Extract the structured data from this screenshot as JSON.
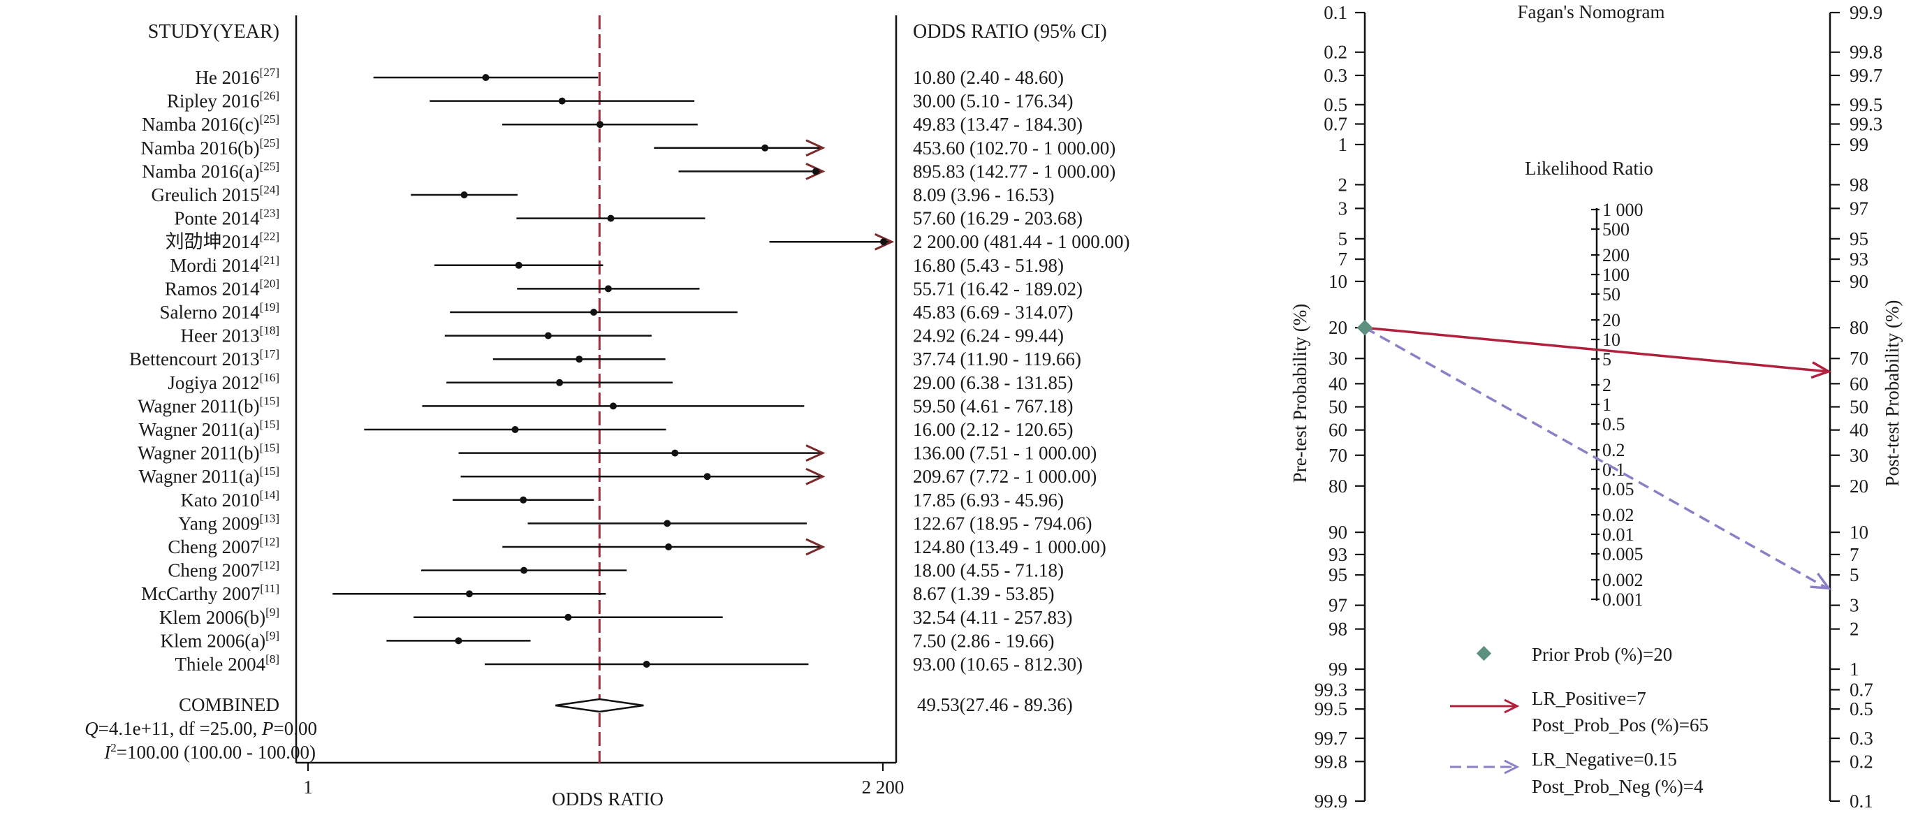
{
  "chart_data": [
    {
      "type": "forest",
      "header_left": "STUDY(YEAR)",
      "header_right": "ODDS RATIO (95% CI)",
      "xlabel": "ODDS RATIO",
      "x_scale": "log",
      "x_ticks": [
        "1",
        "2 200"
      ],
      "xlim": [
        1,
        2200
      ],
      "reference_line": 49.53,
      "arrow_color": "#7a2a2a",
      "reference_color": "#a32a3c",
      "studies": [
        {
          "name": "He 2016",
          "ref": "[27]",
          "or": 10.8,
          "lo": 2.4,
          "hi": 48.6,
          "label": "10.80 (2.40 - 48.60)"
        },
        {
          "name": "Ripley 2016",
          "ref": "[26]",
          "or": 30.0,
          "lo": 5.1,
          "hi": 176.34,
          "label": "30.00 (5.10 - 176.34)"
        },
        {
          "name": "Namba 2016(c)",
          "ref": "[25]",
          "or": 49.83,
          "lo": 13.47,
          "hi": 184.3,
          "label": "49.83 (13.47 - 184.30)"
        },
        {
          "name": "Namba 2016(b)",
          "ref": "[25]",
          "or": 453.6,
          "lo": 102.7,
          "hi": 1000,
          "label": "453.60 (102.70 - 1 000.00)"
        },
        {
          "name": "Namba 2016(a)",
          "ref": "[25]",
          "or": 895.83,
          "lo": 142.77,
          "hi": 1000,
          "label": "895.83 (142.77 - 1 000.00)"
        },
        {
          "name": "Greulich 2015",
          "ref": "[24]",
          "or": 8.09,
          "lo": 3.96,
          "hi": 16.53,
          "label": "8.09 (3.96 - 16.53)"
        },
        {
          "name": "Ponte 2014",
          "ref": "[23]",
          "or": 57.6,
          "lo": 16.29,
          "hi": 203.68,
          "label": "57.60 (16.29 - 203.68)"
        },
        {
          "name": "刘劭坤2014",
          "ref": "[22]",
          "or": 2200.0,
          "lo": 481.44,
          "hi": 1000,
          "label": "2 200.00 (481.44 - 1 000.00)"
        },
        {
          "name": "Mordi 2014",
          "ref": "[21]",
          "or": 16.8,
          "lo": 5.43,
          "hi": 51.98,
          "label": "16.80 (5.43 - 51.98)"
        },
        {
          "name": "Ramos 2014",
          "ref": "[20]",
          "or": 55.71,
          "lo": 16.42,
          "hi": 189.02,
          "label": "55.71 (16.42 - 189.02)"
        },
        {
          "name": "Salerno 2014",
          "ref": "[19]",
          "or": 45.83,
          "lo": 6.69,
          "hi": 314.07,
          "label": "45.83 (6.69 - 314.07)"
        },
        {
          "name": "Heer 2013",
          "ref": "[18]",
          "or": 24.92,
          "lo": 6.24,
          "hi": 99.44,
          "label": "24.92 (6.24 - 99.44)"
        },
        {
          "name": "Bettencourt 2013",
          "ref": "[17]",
          "or": 37.74,
          "lo": 11.9,
          "hi": 119.66,
          "label": "37.74 (11.90 - 119.66)"
        },
        {
          "name": "Jogiya 2012",
          "ref": "[16]",
          "or": 29.0,
          "lo": 6.38,
          "hi": 131.85,
          "label": "29.00 (6.38 - 131.85)"
        },
        {
          "name": "Wagner 2011(b)",
          "ref": "[15]",
          "or": 59.5,
          "lo": 4.61,
          "hi": 767.18,
          "label": "59.50 (4.61 - 767.18)"
        },
        {
          "name": "Wagner 2011(a)",
          "ref": "[15]",
          "or": 16.0,
          "lo": 2.12,
          "hi": 120.65,
          "label": "16.00 (2.12 - 120.65)"
        },
        {
          "name": "Wagner 2011(b)",
          "ref": "[15]",
          "or": 136.0,
          "lo": 7.51,
          "hi": 1000,
          "label": "136.00 (7.51 - 1 000.00)"
        },
        {
          "name": "Wagner 2011(a)",
          "ref": "[15]",
          "or": 209.67,
          "lo": 7.72,
          "hi": 1000,
          "label": "209.67 (7.72 - 1 000.00)"
        },
        {
          "name": "Kato 2010",
          "ref": "[14]",
          "or": 17.85,
          "lo": 6.93,
          "hi": 45.96,
          "label": "17.85 (6.93 - 45.96)"
        },
        {
          "name": "Yang 2009",
          "ref": "[13]",
          "or": 122.67,
          "lo": 18.95,
          "hi": 794.06,
          "label": "122.67 (18.95 - 794.06)"
        },
        {
          "name": "Cheng 2007",
          "ref": "[12]",
          "or": 124.8,
          "lo": 13.49,
          "hi": 1000,
          "label": "124.80 (13.49 - 1 000.00)"
        },
        {
          "name": "Cheng 2007",
          "ref": "[12]",
          "or": 18.0,
          "lo": 4.55,
          "hi": 71.18,
          "label": "18.00 (4.55 - 71.18)"
        },
        {
          "name": "McCarthy 2007",
          "ref": "[11]",
          "or": 8.67,
          "lo": 1.39,
          "hi": 53.85,
          "label": "8.67 (1.39 - 53.85)"
        },
        {
          "name": "Klem 2006(b)",
          "ref": "[9]",
          "or": 32.54,
          "lo": 4.11,
          "hi": 257.83,
          "label": "32.54 (4.11 - 257.83)"
        },
        {
          "name": "Klem 2006(a)",
          "ref": "[9]",
          "or": 7.5,
          "lo": 2.86,
          "hi": 19.66,
          "label": "7.50 (2.86 - 19.66)"
        },
        {
          "name": "Thiele 2004",
          "ref": "[8]",
          "or": 93.0,
          "lo": 10.65,
          "hi": 812.3,
          "label": "93.00 (10.65 - 812.30)"
        }
      ],
      "combined": {
        "name": "COMBINED",
        "or": 49.53,
        "lo": 27.46,
        "hi": 89.36,
        "label": "49.53(27.46 - 89.36)",
        "q_prefix": "Q",
        "q_text": "=4.1e+11, df =25.00, ",
        "p_prefix": "P",
        "p_text": "=0.00",
        "i2_prefix": "I",
        "i2_sup": "2",
        "i2_text": "=100.00 (100.00 - 100.00)"
      }
    },
    {
      "type": "fagan_nomogram",
      "title": "Fagan's Nomogram",
      "left_axis_label": "Pre-test Probability (%)",
      "right_axis_label": "Post-test Probability (%)",
      "lr_axis_label": "Likelihood Ratio",
      "left_ticks": [
        "0.1",
        "0.2",
        "0.3",
        "0.5",
        "0.7",
        "1",
        "2",
        "3",
        "5",
        "7",
        "10",
        "20",
        "30",
        "40",
        "50",
        "60",
        "70",
        "80",
        "90",
        "93",
        "95",
        "97",
        "98",
        "99",
        "99.3",
        "99.5",
        "99.7",
        "99.8",
        "99.9"
      ],
      "right_ticks": [
        "99.9",
        "99.8",
        "99.7",
        "99.5",
        "99.3",
        "99",
        "98",
        "97",
        "95",
        "93",
        "90",
        "80",
        "70",
        "60",
        "50",
        "40",
        "30",
        "20",
        "10",
        "7",
        "5",
        "3",
        "2",
        "1",
        "0.7",
        "0.5",
        "0.3",
        "0.2",
        "0.1"
      ],
      "lr_ticks": [
        "1 000",
        "500",
        "200",
        "100",
        "50",
        "20",
        "10",
        "5",
        "2",
        "1",
        "0.5",
        "0.2",
        "0.1",
        "0.05",
        "0.02",
        "0.01",
        "0.005",
        "0.002",
        "0.001"
      ],
      "prior_prob": 20,
      "lr_positive": 7,
      "post_prob_pos": 65,
      "lr_negative": 0.15,
      "post_prob_neg": 4,
      "colors": {
        "positive": "#b1203c",
        "negative": "#8a80c8",
        "prior": "#5e9080"
      },
      "legend": {
        "prior": "Prior Prob (%)=20",
        "pos_lr": "LR_Positive=7",
        "pos_post": "Post_Prob_Pos (%)=65",
        "neg_lr": "LR_Negative=0.15",
        "neg_post": "Post_Prob_Neg (%)=4"
      }
    }
  ]
}
